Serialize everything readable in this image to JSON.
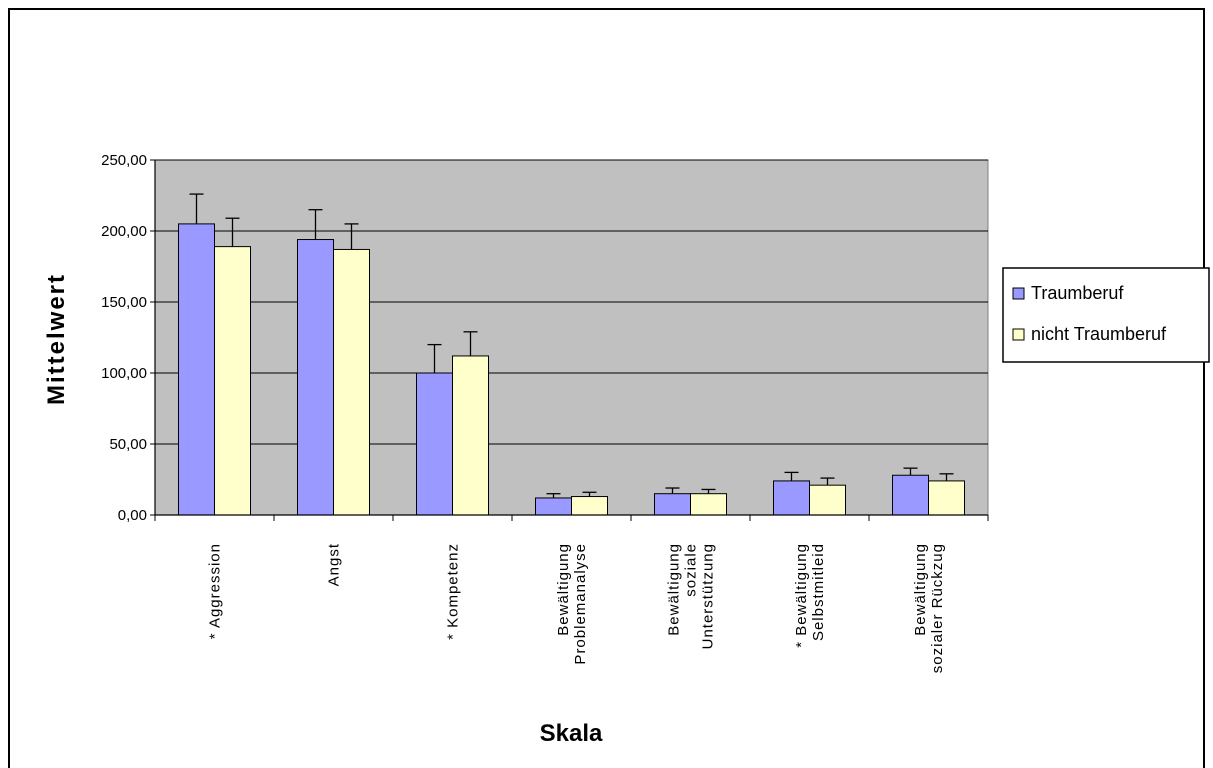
{
  "chart_data": {
    "type": "bar",
    "title": "",
    "xlabel": "Skala",
    "ylabel": "Mittelwert",
    "ylim": [
      0,
      250
    ],
    "yticks": [
      "0,00",
      "50,00",
      "100,00",
      "150,00",
      "200,00",
      "250,00"
    ],
    "ytick_values": [
      0,
      50,
      100,
      150,
      200,
      250
    ],
    "grid": true,
    "legend_position": "right",
    "plot_background": "#c0c0c0",
    "categories": [
      [
        "* Aggression"
      ],
      [
        "Angst"
      ],
      [
        "* Kompetenz"
      ],
      [
        "Bewältigung",
        "Problemanalyse"
      ],
      [
        "Bewältigung",
        "soziale",
        "Unterstützung"
      ],
      [
        "* Bewältigung",
        "Selbstmitleid"
      ],
      [
        "Bewältigung",
        "sozialer Rückzug"
      ]
    ],
    "series": [
      {
        "name": "Traumberuf",
        "color": "#9999ff",
        "values": [
          205,
          194,
          100,
          12,
          15,
          24,
          28
        ],
        "error": [
          21,
          21,
          20,
          3,
          4,
          6,
          5
        ]
      },
      {
        "name": "nicht Traumberuf",
        "color": "#ffffcc",
        "values": [
          189,
          187,
          112,
          13,
          15,
          21,
          24
        ],
        "error": [
          20,
          18,
          17,
          3,
          3,
          5,
          5
        ]
      }
    ]
  }
}
